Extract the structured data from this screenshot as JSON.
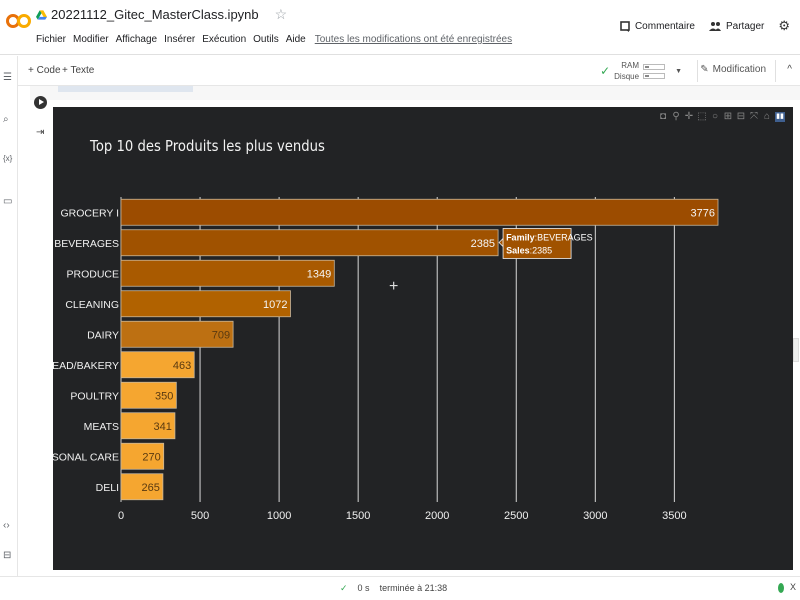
{
  "app": {
    "filename": "20221112_Gitec_MasterClass.ipynb",
    "menu": [
      "Fichier",
      "Modifier",
      "Affichage",
      "Insérer",
      "Exécution",
      "Outils",
      "Aide"
    ],
    "saved_status": "Toutes les modifications ont été enregistrées",
    "comment_label": "Commentaire",
    "share_label": "Partager",
    "add_code_label": "+ Code",
    "add_text_label": "+ Texte",
    "ram_label": "RAM",
    "disk_label": "Disque",
    "edit_mode_label": "Modification",
    "icons": {
      "logo": "colab-logo",
      "drive": "drive-icon",
      "star": "star-icon",
      "comment": "comment-icon",
      "share": "people-icon",
      "settings": "gear-icon"
    }
  },
  "left_rail": {
    "items": [
      "toc-icon",
      "search-icon",
      "variables-icon",
      "folder-icon",
      "code-snippets-icon",
      "terminal-icon"
    ]
  },
  "status_bar": {
    "check": "✓",
    "duration": "0 s",
    "finished": "terminée à 21:38",
    "close": "X"
  },
  "plot": {
    "modebar": [
      "camera-icon",
      "zoom-icon",
      "pan-icon",
      "box-select-icon",
      "lasso-icon",
      "zoom-in-icon",
      "zoom-out-icon",
      "autoscale-icon",
      "home-icon",
      "plotly-logo-icon"
    ],
    "tooltip": {
      "family_key": "Family",
      "family_value": "BEVERAGES",
      "sales_key": "Sales",
      "sales_value": "2385"
    },
    "bar_colors": [
      "#9c4c00",
      "#a05200",
      "#a95a00",
      "#b16200",
      "#bd7012",
      "#f5a630",
      "#f5a630",
      "#f5a630",
      "#f5a630",
      "#f5a630"
    ]
  },
  "chart_data": {
    "type": "bar",
    "orientation": "horizontal",
    "title": "Top 10 des Produits les plus vendus",
    "categories": [
      "GROCERY I",
      "BEVERAGES",
      "PRODUCE",
      "CLEANING",
      "DAIRY",
      "BREAD/BAKERY",
      "POULTRY",
      "MEATS",
      "PERSONAL CARE",
      "DELI"
    ],
    "values": [
      3776,
      2385,
      1349,
      1072,
      709,
      463,
      350,
      341,
      270,
      265
    ],
    "labels": [
      "3776",
      "2385",
      "1349",
      "1072",
      "709",
      "463",
      "350",
      "341",
      "270",
      "265"
    ],
    "xticks": [
      "0",
      "500",
      "1000",
      "1500",
      "2000",
      "2500",
      "3000",
      "3500"
    ],
    "xlim": [
      0,
      3776
    ],
    "grid": true,
    "xlabel": "",
    "ylabel": ""
  }
}
